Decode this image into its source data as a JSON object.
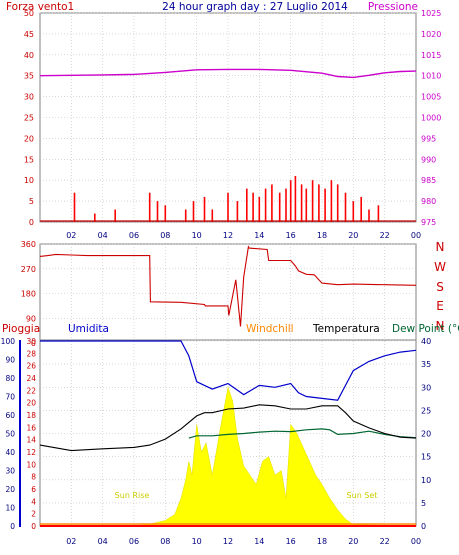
{
  "title": "24 hour graph day : 27 Luglio 2014",
  "colors": {
    "wind": "#cc0000",
    "pressure": "#cc00cc",
    "direction": "#cc0000",
    "rain": "#ff0000",
    "humidity": "#0000cc",
    "windchill": "#ff8800",
    "temperature": "#000000",
    "dewpoint": "#006633",
    "sun": "#ffff00",
    "sunlabel": "#cccc00",
    "frame": "#808080",
    "grid": "#c0c0c0"
  },
  "chart_data": [
    {
      "type": "line",
      "panel": "wind-pressure",
      "labels": {
        "left": "Forza vento1",
        "right": "Pressione"
      },
      "x_ticks": [
        "02",
        "04",
        "06",
        "08",
        "10",
        "12",
        "14",
        "16",
        "18",
        "20",
        "22",
        "00"
      ],
      "y_left": {
        "ticks": [
          "0",
          "5",
          "10",
          "15",
          "20",
          "25",
          "30",
          "35",
          "40",
          "45",
          "50"
        ],
        "range": [
          0,
          50
        ]
      },
      "y_right": {
        "ticks": [
          "975",
          "980",
          "985",
          "990",
          "995",
          "1000",
          "1005",
          "1010",
          "1015",
          "1020",
          "1025"
        ],
        "range": [
          975,
          1025
        ]
      },
      "series": [
        {
          "name": "Forza vento1",
          "axis": "left",
          "style": "bars",
          "x": [
            2.2,
            3.5,
            4.8,
            7.0,
            7.5,
            8.0,
            9.3,
            9.8,
            10.5,
            11.0,
            12.0,
            12.6,
            13.2,
            13.6,
            14.0,
            14.4,
            14.8,
            15.3,
            15.7,
            16.0,
            16.3,
            16.7,
            17.0,
            17.4,
            17.8,
            18.2,
            18.6,
            19.0,
            19.5,
            20.0,
            20.5,
            21.0,
            21.6
          ],
          "values": [
            7,
            2,
            3,
            7,
            5,
            4,
            3,
            5,
            6,
            3,
            7,
            5,
            8,
            7,
            6,
            8,
            9,
            7,
            8,
            10,
            11,
            9,
            8,
            10,
            9,
            8,
            10,
            9,
            7,
            5,
            6,
            3,
            4
          ]
        },
        {
          "name": "Pressione",
          "axis": "right",
          "x": [
            0,
            2,
            4,
            6,
            8,
            10,
            12,
            14,
            16,
            18,
            19,
            20,
            21,
            22,
            23,
            24
          ],
          "values": [
            1010.0,
            1010.1,
            1010.2,
            1010.3,
            1010.8,
            1011.4,
            1011.5,
            1011.5,
            1011.3,
            1010.6,
            1009.8,
            1009.6,
            1010.1,
            1010.7,
            1011.0,
            1011.1
          ]
        }
      ]
    },
    {
      "type": "line",
      "panel": "direction",
      "y_left": {
        "ticks": [
          "0",
          "90",
          "180",
          "270",
          "360"
        ],
        "range": [
          0,
          360
        ]
      },
      "compass": [
        "N",
        "W",
        "S",
        "E",
        "N"
      ],
      "series": [
        {
          "name": "direction",
          "x": [
            0,
            0.5,
            1,
            2,
            3,
            5,
            6.5,
            7.0,
            7.05,
            9,
            10.5,
            10.55,
            12,
            12.05,
            12.5,
            12.8,
            13.0,
            13.3,
            13.35,
            14.5,
            14.6,
            16.0,
            16.3,
            16.5,
            17.0,
            17.5,
            18.0,
            19,
            20,
            22,
            24
          ],
          "values": [
            315,
            318,
            322,
            320,
            318,
            318,
            318,
            318,
            150,
            148,
            140,
            135,
            135,
            100,
            230,
            60,
            240,
            350,
            345,
            340,
            300,
            300,
            280,
            262,
            250,
            248,
            218,
            212,
            214,
            212,
            210
          ]
        }
      ]
    },
    {
      "type": "line",
      "panel": "rain-humidity-temperature",
      "labels": {
        "rain": "Pioggia",
        "humidity": "Umidita",
        "windchill": "Windchill",
        "temperature": "Temperatura",
        "dewpoint": "Dew Point (°C"
      },
      "x_ticks": [
        "02",
        "04",
        "06",
        "08",
        "10",
        "12",
        "14",
        "16",
        "18",
        "20",
        "22",
        "00"
      ],
      "y_left_outer": {
        "ticks": [
          "0",
          "10",
          "20",
          "30",
          "40",
          "50",
          "60",
          "70",
          "80",
          "90",
          "100"
        ],
        "range": [
          0,
          100
        ]
      },
      "y_left_inner": {
        "ticks": [
          "0",
          "2",
          "4",
          "6",
          "8",
          "10",
          "12",
          "14",
          "16",
          "18",
          "20",
          "22",
          "24",
          "26",
          "28",
          "30"
        ],
        "range": [
          0,
          30
        ]
      },
      "y_right": {
        "ticks": [
          "0",
          "5",
          "10",
          "15",
          "20",
          "25",
          "30",
          "35",
          "40"
        ],
        "range": [
          0,
          40
        ]
      },
      "annotations": [
        "Sun Rise",
        "Sun Set"
      ],
      "series": [
        {
          "name": "Umidita",
          "axis": "left_outer",
          "x": [
            0,
            2,
            4,
            6,
            8,
            9,
            9.5,
            10,
            10.5,
            11,
            12,
            13,
            14,
            15,
            16,
            16.5,
            17,
            18,
            19,
            19.5,
            20,
            21,
            22,
            23,
            24
          ],
          "values": [
            100,
            100,
            100,
            100,
            100,
            100,
            92,
            78,
            76,
            74,
            77,
            71,
            76,
            75,
            77,
            72,
            70,
            69,
            68,
            76,
            84,
            89,
            92,
            94,
            95
          ]
        },
        {
          "name": "Temperatura",
          "axis": "right",
          "x": [
            0,
            2,
            4,
            6,
            7,
            8,
            9,
            10,
            10.5,
            11,
            12,
            13,
            14,
            15,
            16,
            17,
            18,
            19,
            19.5,
            20,
            21,
            22,
            23,
            24
          ],
          "values": [
            17.5,
            16.3,
            16.7,
            17.0,
            17.5,
            18.8,
            21.0,
            23.8,
            24.5,
            24.5,
            25.3,
            25.5,
            26.2,
            26.0,
            25.3,
            25.3,
            26.0,
            26.0,
            24.5,
            22.7,
            21.2,
            20.0,
            19.2,
            19.0
          ]
        },
        {
          "name": "Dew Point",
          "axis": "right",
          "x": [
            9.5,
            10,
            11,
            12,
            13,
            14,
            15,
            16,
            17,
            18,
            18.5,
            19,
            20,
            21,
            22,
            23,
            24
          ],
          "values": [
            19.0,
            19.5,
            19.5,
            19.8,
            20.0,
            20.3,
            20.5,
            20.4,
            20.8,
            21.0,
            20.8,
            19.8,
            20.0,
            20.5,
            19.8,
            19.3,
            19.1
          ]
        },
        {
          "name": "sun",
          "axis": "right",
          "style": "area",
          "x": [
            6,
            7,
            8,
            8.6,
            9,
            9.3,
            9.5,
            9.7,
            10,
            10.3,
            10.6,
            11,
            11.5,
            12,
            12.3,
            12.6,
            13,
            13.4,
            13.8,
            14.2,
            14.6,
            15,
            15.4,
            15.7,
            16,
            16.4,
            16.8,
            17.2,
            17.6,
            18,
            18.5,
            19,
            19.5,
            20,
            24
          ],
          "values": [
            0,
            0.4,
            1.2,
            2.5,
            6,
            10,
            14,
            11,
            22,
            16,
            18,
            11,
            21,
            30,
            27,
            19,
            13,
            11,
            9,
            14,
            15,
            11,
            12,
            6,
            22,
            20,
            17,
            14,
            11,
            9,
            6,
            3.5,
            1.5,
            0.3,
            0
          ]
        },
        {
          "name": "Pioggia",
          "axis": "left_inner",
          "x": [
            0,
            24
          ],
          "values": [
            0,
            0
          ]
        }
      ]
    }
  ]
}
